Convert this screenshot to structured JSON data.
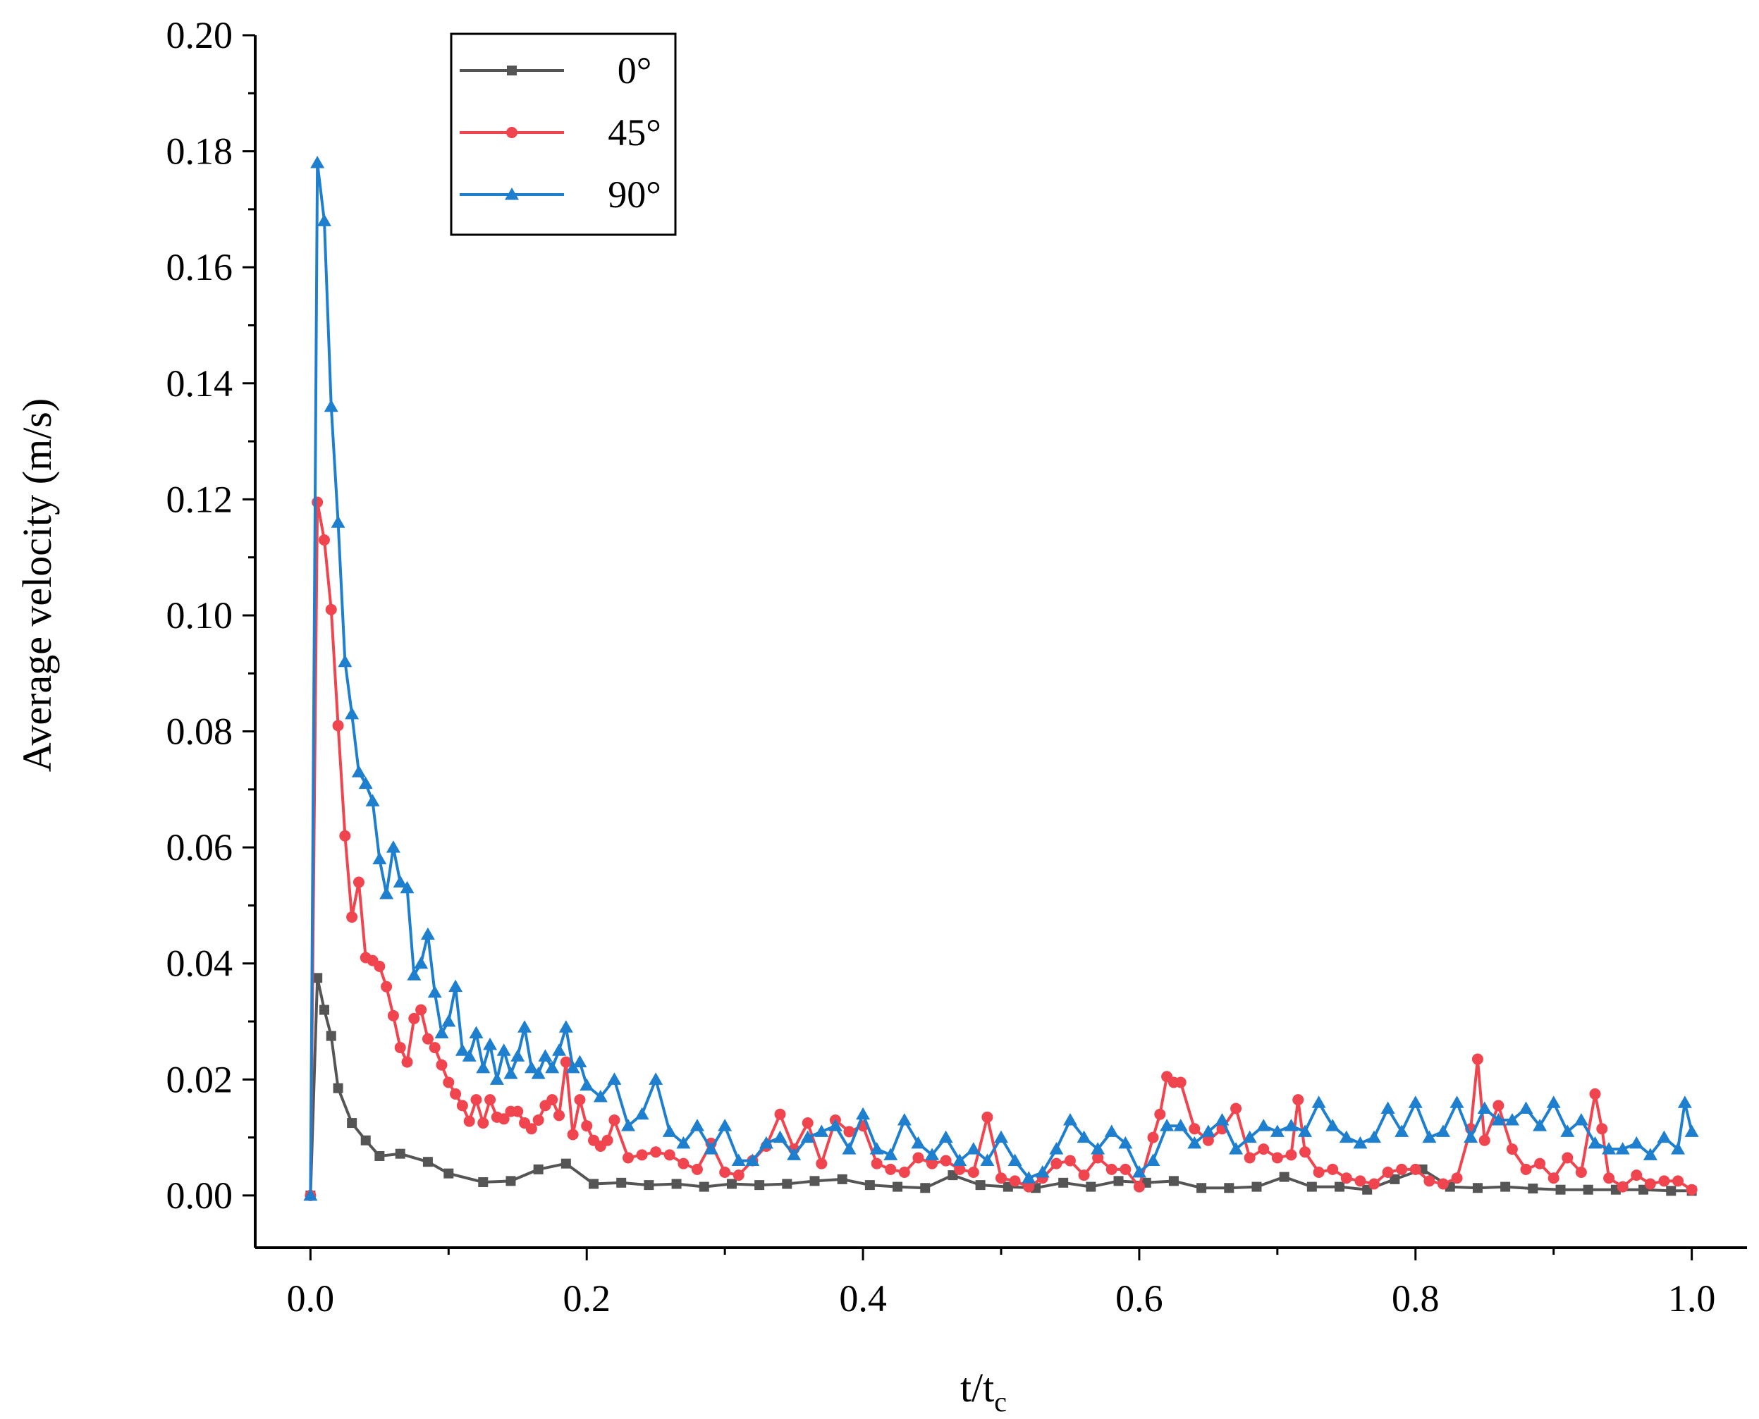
{
  "chart_data": {
    "type": "line",
    "title": "",
    "xlabel": "t/t",
    "xlabel_sub": "c",
    "ylabel": "Average velocity (m/s)",
    "xlim": [
      -0.04,
      1.04
    ],
    "ylim": [
      -0.009,
      0.2
    ],
    "x_ticks": [
      "0.0",
      "0.2",
      "0.4",
      "0.6",
      "0.8",
      "1.0"
    ],
    "y_ticks": [
      "0.00",
      "0.02",
      "0.04",
      "0.06",
      "0.08",
      "0.10",
      "0.12",
      "0.14",
      "0.16",
      "0.18",
      "0.20"
    ],
    "grid": false,
    "legend_position": "top-left",
    "series": [
      {
        "name": "0°",
        "color": "#555555",
        "marker": "square",
        "x": [
          0,
          0.005,
          0.01,
          0.015,
          0.02,
          0.03,
          0.04,
          0.05,
          0.065,
          0.085,
          0.1,
          0.125,
          0.145,
          0.165,
          0.185,
          0.205,
          0.225,
          0.245,
          0.265,
          0.285,
          0.305,
          0.325,
          0.345,
          0.365,
          0.385,
          0.405,
          0.425,
          0.445,
          0.465,
          0.485,
          0.505,
          0.525,
          0.545,
          0.565,
          0.585,
          0.605,
          0.625,
          0.645,
          0.665,
          0.685,
          0.705,
          0.725,
          0.745,
          0.765,
          0.785,
          0.805,
          0.825,
          0.845,
          0.865,
          0.885,
          0.905,
          0.925,
          0.945,
          0.965,
          0.985,
          1.0
        ],
        "y": [
          0,
          0.0375,
          0.032,
          0.0275,
          0.0185,
          0.0125,
          0.0095,
          0.0068,
          0.0072,
          0.0058,
          0.0038,
          0.0023,
          0.0025,
          0.0045,
          0.0055,
          0.002,
          0.0022,
          0.0018,
          0.002,
          0.0015,
          0.002,
          0.0018,
          0.002,
          0.0025,
          0.0028,
          0.0018,
          0.0015,
          0.0013,
          0.0035,
          0.0018,
          0.0015,
          0.0013,
          0.0022,
          0.0015,
          0.0025,
          0.0022,
          0.0025,
          0.0013,
          0.0013,
          0.0015,
          0.0032,
          0.0015,
          0.0015,
          0.001,
          0.0028,
          0.0045,
          0.0015,
          0.0013,
          0.0015,
          0.0012,
          0.001,
          0.001,
          0.001,
          0.001,
          0.0008,
          0.0008
        ]
      },
      {
        "name": "45°",
        "color": "#f0444e",
        "marker": "circle",
        "x": [
          0,
          0.005,
          0.01,
          0.015,
          0.02,
          0.025,
          0.03,
          0.035,
          0.04,
          0.045,
          0.05,
          0.055,
          0.06,
          0.065,
          0.07,
          0.075,
          0.08,
          0.085,
          0.09,
          0.095,
          0.1,
          0.105,
          0.11,
          0.115,
          0.12,
          0.125,
          0.13,
          0.135,
          0.14,
          0.145,
          0.15,
          0.155,
          0.16,
          0.165,
          0.17,
          0.175,
          0.18,
          0.185,
          0.19,
          0.195,
          0.2,
          0.205,
          0.21,
          0.215,
          0.22,
          0.23,
          0.24,
          0.25,
          0.26,
          0.27,
          0.28,
          0.29,
          0.3,
          0.31,
          0.32,
          0.33,
          0.34,
          0.35,
          0.36,
          0.37,
          0.38,
          0.39,
          0.4,
          0.41,
          0.42,
          0.43,
          0.44,
          0.45,
          0.46,
          0.47,
          0.48,
          0.49,
          0.5,
          0.51,
          0.52,
          0.53,
          0.54,
          0.55,
          0.56,
          0.57,
          0.58,
          0.59,
          0.6,
          0.61,
          0.615,
          0.62,
          0.625,
          0.63,
          0.64,
          0.65,
          0.66,
          0.67,
          0.68,
          0.69,
          0.7,
          0.71,
          0.715,
          0.72,
          0.73,
          0.74,
          0.75,
          0.76,
          0.77,
          0.78,
          0.79,
          0.8,
          0.81,
          0.82,
          0.83,
          0.84,
          0.845,
          0.85,
          0.86,
          0.87,
          0.88,
          0.89,
          0.9,
          0.91,
          0.92,
          0.93,
          0.935,
          0.94,
          0.95,
          0.96,
          0.97,
          0.98,
          0.99,
          1.0
        ],
        "y": [
          0,
          0.1195,
          0.113,
          0.101,
          0.081,
          0.062,
          0.048,
          0.054,
          0.041,
          0.0405,
          0.0395,
          0.036,
          0.031,
          0.0255,
          0.023,
          0.0305,
          0.032,
          0.027,
          0.0255,
          0.0225,
          0.0195,
          0.0175,
          0.0155,
          0.0128,
          0.0165,
          0.0125,
          0.0165,
          0.0135,
          0.0132,
          0.0145,
          0.0145,
          0.0125,
          0.0115,
          0.013,
          0.0155,
          0.0165,
          0.0138,
          0.023,
          0.0105,
          0.0165,
          0.012,
          0.0095,
          0.0085,
          0.0095,
          0.013,
          0.0065,
          0.007,
          0.0075,
          0.007,
          0.0055,
          0.0045,
          0.009,
          0.004,
          0.0035,
          0.006,
          0.0085,
          0.014,
          0.008,
          0.0125,
          0.0055,
          0.013,
          0.011,
          0.012,
          0.0055,
          0.0045,
          0.004,
          0.0065,
          0.0055,
          0.006,
          0.0045,
          0.004,
          0.0135,
          0.003,
          0.0025,
          0.0015,
          0.003,
          0.0055,
          0.006,
          0.0035,
          0.0065,
          0.0045,
          0.0045,
          0.0015,
          0.01,
          0.014,
          0.0205,
          0.0195,
          0.0195,
          0.0115,
          0.0095,
          0.0115,
          0.015,
          0.0065,
          0.008,
          0.0065,
          0.007,
          0.0165,
          0.0075,
          0.004,
          0.0045,
          0.003,
          0.0025,
          0.002,
          0.004,
          0.0045,
          0.0045,
          0.0025,
          0.002,
          0.003,
          0.0115,
          0.0235,
          0.0095,
          0.0155,
          0.008,
          0.0045,
          0.0055,
          0.003,
          0.0065,
          0.004,
          0.0175,
          0.0115,
          0.003,
          0.0015,
          0.0035,
          0.002,
          0.0025,
          0.0025,
          0.001
        ]
      },
      {
        "name": "90°",
        "color": "#1f7fcf",
        "marker": "triangle",
        "x": [
          0,
          0.005,
          0.01,
          0.015,
          0.02,
          0.025,
          0.03,
          0.035,
          0.04,
          0.045,
          0.05,
          0.055,
          0.06,
          0.065,
          0.07,
          0.075,
          0.08,
          0.085,
          0.09,
          0.095,
          0.1,
          0.105,
          0.11,
          0.115,
          0.12,
          0.125,
          0.13,
          0.135,
          0.14,
          0.145,
          0.15,
          0.155,
          0.16,
          0.165,
          0.17,
          0.175,
          0.18,
          0.185,
          0.19,
          0.195,
          0.2,
          0.21,
          0.22,
          0.23,
          0.24,
          0.25,
          0.26,
          0.27,
          0.28,
          0.29,
          0.3,
          0.31,
          0.32,
          0.33,
          0.34,
          0.35,
          0.36,
          0.37,
          0.38,
          0.39,
          0.4,
          0.41,
          0.42,
          0.43,
          0.44,
          0.45,
          0.46,
          0.47,
          0.48,
          0.49,
          0.5,
          0.51,
          0.52,
          0.53,
          0.54,
          0.55,
          0.56,
          0.57,
          0.58,
          0.59,
          0.6,
          0.61,
          0.62,
          0.63,
          0.64,
          0.65,
          0.66,
          0.67,
          0.68,
          0.69,
          0.7,
          0.71,
          0.72,
          0.73,
          0.74,
          0.75,
          0.76,
          0.77,
          0.78,
          0.79,
          0.8,
          0.81,
          0.82,
          0.83,
          0.84,
          0.85,
          0.86,
          0.87,
          0.88,
          0.89,
          0.9,
          0.91,
          0.92,
          0.93,
          0.94,
          0.95,
          0.96,
          0.97,
          0.98,
          0.99,
          0.995,
          1.0
        ],
        "y": [
          0,
          0.178,
          0.168,
          0.136,
          0.116,
          0.092,
          0.083,
          0.073,
          0.071,
          0.068,
          0.058,
          0.052,
          0.06,
          0.054,
          0.053,
          0.038,
          0.04,
          0.045,
          0.035,
          0.028,
          0.03,
          0.036,
          0.025,
          0.024,
          0.028,
          0.022,
          0.026,
          0.02,
          0.025,
          0.021,
          0.024,
          0.029,
          0.022,
          0.021,
          0.024,
          0.022,
          0.025,
          0.029,
          0.022,
          0.023,
          0.019,
          0.017,
          0.02,
          0.012,
          0.014,
          0.02,
          0.011,
          0.009,
          0.012,
          0.008,
          0.012,
          0.006,
          0.006,
          0.009,
          0.01,
          0.007,
          0.01,
          0.011,
          0.012,
          0.008,
          0.014,
          0.008,
          0.007,
          0.013,
          0.009,
          0.007,
          0.01,
          0.006,
          0.008,
          0.006,
          0.01,
          0.006,
          0.003,
          0.004,
          0.008,
          0.013,
          0.01,
          0.008,
          0.011,
          0.009,
          0.004,
          0.006,
          0.012,
          0.012,
          0.009,
          0.011,
          0.013,
          0.008,
          0.01,
          0.012,
          0.011,
          0.012,
          0.011,
          0.016,
          0.012,
          0.01,
          0.009,
          0.01,
          0.015,
          0.011,
          0.016,
          0.01,
          0.011,
          0.016,
          0.01,
          0.015,
          0.013,
          0.013,
          0.015,
          0.012,
          0.016,
          0.011,
          0.013,
          0.009,
          0.008,
          0.008,
          0.009,
          0.007,
          0.01,
          0.008,
          0.016,
          0.011
        ]
      }
    ]
  }
}
